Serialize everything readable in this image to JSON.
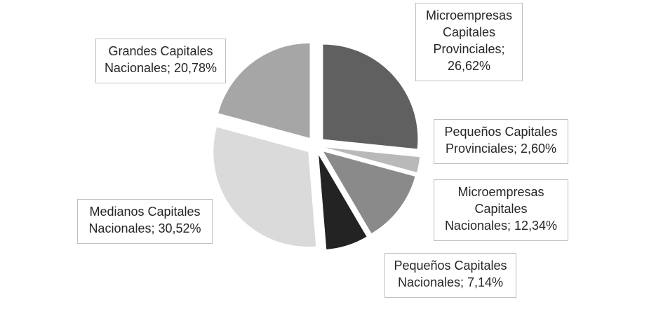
{
  "chart_data": {
    "type": "pie",
    "title": "",
    "exploded": true,
    "legend": "none",
    "slices": [
      {
        "category": "Microempresas Capitales Provinciales",
        "value": 26.62,
        "label_text": "Microempresas\nCapitales\nProvinciales;\n26,62%",
        "color": "#606060"
      },
      {
        "category": "Pequeños Capitales Provinciales",
        "value": 2.6,
        "label_text": "Pequeños Capitales\nProvinciales; 2,60%",
        "color": "#b9b9b9"
      },
      {
        "category": "Microempresas Capitales Nacionales",
        "value": 12.34,
        "label_text": "Microempresas\nCapitales\nNacionales; 12,34%",
        "color": "#8a8a8a"
      },
      {
        "category": "Pequeños Capitales Nacionales",
        "value": 7.14,
        "label_text": "Pequeños Capitales\nNacionales; 7,14%",
        "color": "#232323"
      },
      {
        "category": "Medianos Capitales Nacionales",
        "value": 30.52,
        "label_text": "Medianos Capitales\nNacionales; 30,52%",
        "color": "#dadada"
      },
      {
        "category": "Grandes Capitales Nacionales",
        "value": 20.78,
        "label_text": "Grandes Capitales\nNacionales; 20,78%",
        "color": "#a6a6a6"
      }
    ]
  }
}
